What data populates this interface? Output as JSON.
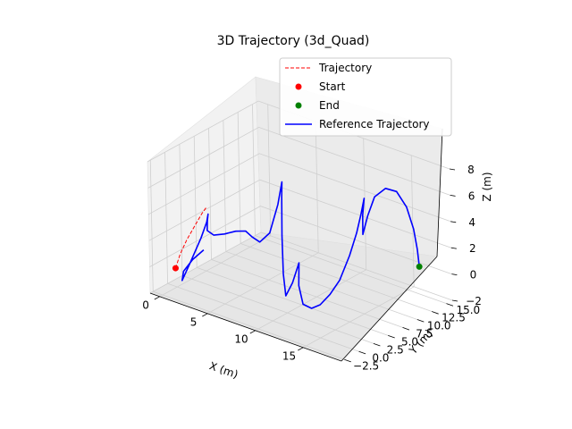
{
  "chart_data": {
    "type": "line3d",
    "title": "3D Trajectory (3d_Quad)",
    "xlabel": "X (m)",
    "ylabel": "Y (m)",
    "zlabel": "Z (m)",
    "xlim": [
      -1,
      19
    ],
    "ylim": [
      -3,
      16
    ],
    "zlim": [
      -2,
      8
    ],
    "x_ticks": [
      "0",
      "5",
      "10",
      "15"
    ],
    "x_tick_values": [
      0,
      5,
      10,
      15
    ],
    "y_ticks": [
      "−2.5",
      "0.0",
      "2.5",
      "5.0",
      "7.5",
      "10.0",
      "12.5",
      "15.0"
    ],
    "y_tick_values": [
      -2.5,
      0,
      2.5,
      5,
      7.5,
      10,
      12.5,
      15
    ],
    "z_ticks": [
      "−2",
      "0",
      "2",
      "4",
      "6",
      "8"
    ],
    "z_tick_values": [
      -2,
      0,
      2,
      4,
      6,
      8
    ],
    "grid": true,
    "legend_position": "top-right",
    "series": [
      {
        "name": "Trajectory",
        "style": "dashed",
        "color": "#ff0000",
        "points": [
          [
            0.8,
            -1.5,
            0.0
          ],
          [
            1.0,
            -1.0,
            1.0
          ],
          [
            1.3,
            -0.3,
            2.0
          ],
          [
            1.7,
            0.5,
            3.0
          ],
          [
            2.0,
            1.2,
            3.8
          ],
          [
            2.2,
            1.6,
            4.2
          ]
        ]
      },
      {
        "name": "Start",
        "style": "marker",
        "color": "#ff0000",
        "points": [
          [
            0.8,
            -1.5,
            0.0
          ]
        ]
      },
      {
        "name": "End",
        "style": "marker",
        "color": "#008000",
        "points": [
          [
            18.4,
            11.5,
            1.5
          ]
        ]
      },
      {
        "name": "Reference Trajectory",
        "style": "solid",
        "color": "#0000ff",
        "points": [
          [
            2.0,
            1.4,
            1.0
          ],
          [
            1.5,
            0.3,
            0.4
          ],
          [
            1.2,
            -0.8,
            -0.3
          ],
          [
            1.4,
            -1.4,
            -0.8
          ],
          [
            1.9,
            -0.8,
            0.5
          ],
          [
            2.3,
            0.5,
            2.2
          ],
          [
            2.5,
            1.2,
            3.3
          ],
          [
            2.6,
            1.3,
            3.9
          ],
          [
            2.7,
            1.0,
            3.5
          ],
          [
            2.9,
            0.6,
            2.9
          ],
          [
            3.4,
            0.9,
            2.6
          ],
          [
            4.1,
            1.6,
            2.7
          ],
          [
            4.8,
            2.4,
            2.9
          ],
          [
            5.4,
            3.1,
            2.9
          ],
          [
            5.9,
            3.4,
            2.5
          ],
          [
            6.5,
            3.7,
            2.2
          ],
          [
            7.0,
            4.6,
            2.8
          ],
          [
            7.3,
            5.6,
            4.8
          ],
          [
            7.4,
            6.2,
            6.4
          ],
          [
            7.6,
            5.8,
            5.4
          ],
          [
            8.1,
            4.9,
            2.8
          ],
          [
            8.6,
            4.2,
            0.2
          ],
          [
            9.0,
            3.9,
            -1.3
          ],
          [
            9.3,
            4.6,
            -0.4
          ],
          [
            9.4,
            5.6,
            0.9
          ],
          [
            9.7,
            5.0,
            -0.6
          ],
          [
            10.3,
            4.7,
            -1.8
          ],
          [
            11.0,
            5.0,
            -2.0
          ],
          [
            11.6,
            5.5,
            -1.7
          ],
          [
            12.1,
            6.4,
            -1.0
          ],
          [
            12.6,
            7.3,
            0.0
          ],
          [
            13.0,
            8.4,
            1.7
          ],
          [
            13.3,
            9.2,
            3.3
          ],
          [
            13.5,
            9.7,
            4.7
          ],
          [
            13.6,
            10.1,
            5.8
          ],
          [
            13.6,
            9.8,
            4.6
          ],
          [
            13.7,
            9.6,
            3.2
          ],
          [
            14.0,
            10.0,
            4.6
          ],
          [
            14.4,
            10.6,
            6.0
          ],
          [
            15.2,
            11.2,
            6.7
          ],
          [
            16.1,
            11.6,
            6.6
          ],
          [
            17.0,
            11.8,
            5.6
          ],
          [
            17.7,
            11.8,
            4.1
          ],
          [
            18.1,
            11.7,
            2.7
          ],
          [
            18.4,
            11.5,
            1.5
          ]
        ]
      }
    ]
  }
}
